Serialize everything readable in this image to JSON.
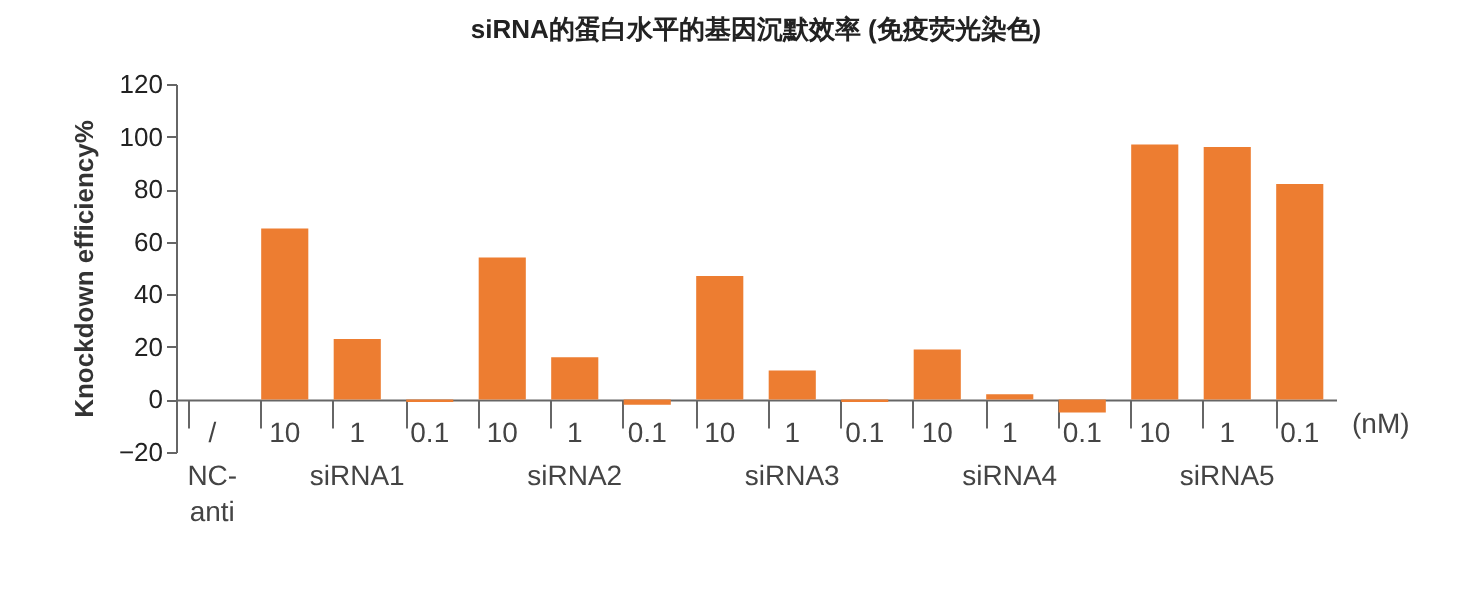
{
  "chart_data": {
    "type": "bar",
    "title": "siRNA的蛋白水平的基因沉默效率 (免疫荧光染色)",
    "ylabel": "Knockdown efficiency%",
    "categories": [
      "/",
      "10",
      "1",
      "0.1",
      "10",
      "1",
      "0.1",
      "10",
      "1",
      "0.1",
      "10",
      "1",
      "0.1",
      "10",
      "1",
      "0.1"
    ],
    "values": [
      null,
      65,
      23,
      -1,
      54,
      16,
      -2,
      47,
      11,
      -1,
      19,
      2,
      -5,
      97,
      96,
      82
    ],
    "color": "#ed7d31",
    "ylim": [
      -20,
      120
    ],
    "yticks": [
      -20,
      0,
      20,
      40,
      60,
      80,
      100,
      120
    ],
    "grid": false,
    "annotations": [
      "NC-\nanti",
      "siRNA1",
      "siRNA2",
      "siRNA3",
      "siRNA4",
      "siRNA5",
      "(nM)"
    ]
  }
}
